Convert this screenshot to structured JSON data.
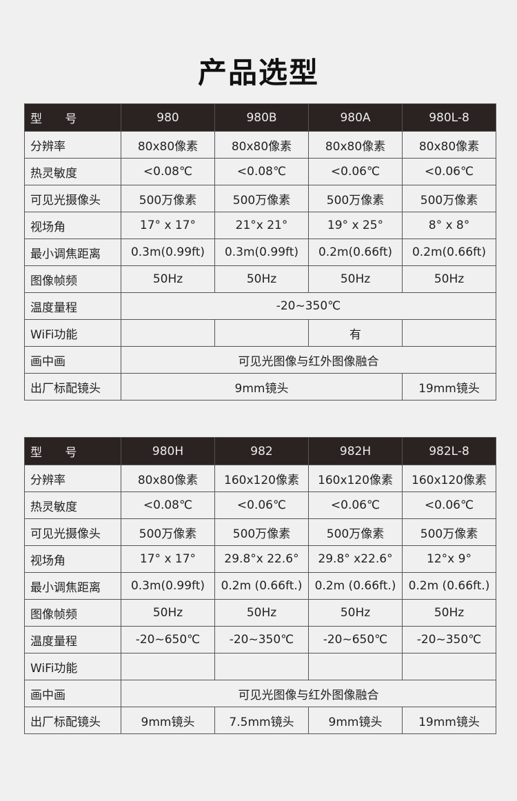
{
  "title": "产品选型",
  "tables": [
    {
      "header": [
        "型 号",
        "980",
        "980B",
        "980A",
        "980L-8"
      ],
      "rows": [
        {
          "label": "分辨率",
          "cells": [
            {
              "text": "80x80像素"
            },
            {
              "text": "80x80像素"
            },
            {
              "text": "80x80像素"
            },
            {
              "text": "80x80像素"
            }
          ]
        },
        {
          "label": "热灵敏度",
          "cells": [
            {
              "text": "<0.08℃"
            },
            {
              "text": "<0.08℃"
            },
            {
              "text": "<0.06℃"
            },
            {
              "text": "<0.06℃"
            }
          ]
        },
        {
          "label": "可见光摄像头",
          "cells": [
            {
              "text": "500万像素"
            },
            {
              "text": "500万像素"
            },
            {
              "text": "500万像素"
            },
            {
              "text": "500万像素"
            }
          ]
        },
        {
          "label": "视场角",
          "cells": [
            {
              "text": "17° x 17°"
            },
            {
              "text": "21°x 21°"
            },
            {
              "text": "19° x 25°"
            },
            {
              "text": "8° x 8°"
            }
          ]
        },
        {
          "label": "最小调焦距离",
          "cells": [
            {
              "text": "0.3m(0.99ft)"
            },
            {
              "text": "0.3m(0.99ft)"
            },
            {
              "text": "0.2m(0.66ft)"
            },
            {
              "text": "0.2m(0.66ft)"
            }
          ]
        },
        {
          "label": "图像帧频",
          "cells": [
            {
              "text": "50Hz"
            },
            {
              "text": "50Hz"
            },
            {
              "text": "50Hz"
            },
            {
              "text": "50Hz"
            }
          ]
        },
        {
          "label": "温度量程",
          "cells": [
            {
              "text": "-20~350℃",
              "span": 4
            }
          ]
        },
        {
          "label": "WiFi功能",
          "cells": [
            {
              "text": ""
            },
            {
              "text": ""
            },
            {
              "text": "有"
            },
            {
              "text": ""
            }
          ]
        },
        {
          "label": "画中画",
          "cells": [
            {
              "text": "可见光图像与红外图像融合",
              "span": 4
            }
          ]
        },
        {
          "label": "出厂标配镜头",
          "cells": [
            {
              "text": "9mm镜头",
              "span": 3
            },
            {
              "text": "19mm镜头"
            }
          ]
        }
      ]
    },
    {
      "header": [
        "型 号",
        "980H",
        "982",
        "982H",
        "982L-8"
      ],
      "rows": [
        {
          "label": "分辨率",
          "cells": [
            {
              "text": "80x80像素"
            },
            {
              "text": "160x120像素"
            },
            {
              "text": "160x120像素"
            },
            {
              "text": "160x120像素"
            }
          ]
        },
        {
          "label": "热灵敏度",
          "cells": [
            {
              "text": "<0.08℃"
            },
            {
              "text": "<0.06℃"
            },
            {
              "text": "<0.06℃"
            },
            {
              "text": "<0.06℃"
            }
          ]
        },
        {
          "label": "可见光摄像头",
          "cells": [
            {
              "text": "500万像素"
            },
            {
              "text": "500万像素"
            },
            {
              "text": "500万像素"
            },
            {
              "text": "500万像素"
            }
          ]
        },
        {
          "label": "视场角",
          "cells": [
            {
              "text": "17° x 17°"
            },
            {
              "text": "29.8°x 22.6°"
            },
            {
              "text": "29.8° x22.6°"
            },
            {
              "text": "12°x 9°"
            }
          ]
        },
        {
          "label": "最小调焦距离",
          "cells": [
            {
              "text": "0.3m(0.99ft)"
            },
            {
              "text": "0.2m (0.66ft.)"
            },
            {
              "text": "0.2m (0.66ft.)"
            },
            {
              "text": "0.2m (0.66ft.)"
            }
          ]
        },
        {
          "label": "图像帧频",
          "cells": [
            {
              "text": "50Hz"
            },
            {
              "text": "50Hz"
            },
            {
              "text": "50Hz"
            },
            {
              "text": "50Hz"
            }
          ]
        },
        {
          "label": "温度量程",
          "cells": [
            {
              "text": "-20~650℃"
            },
            {
              "text": "-20~350℃"
            },
            {
              "text": "-20~650℃"
            },
            {
              "text": "-20~350℃"
            }
          ]
        },
        {
          "label": "WiFi功能",
          "cells": [
            {
              "text": ""
            },
            {
              "text": ""
            },
            {
              "text": ""
            },
            {
              "text": ""
            }
          ]
        },
        {
          "label": "画中画",
          "cells": [
            {
              "text": "可见光图像与红外图像融合",
              "span": 4
            }
          ]
        },
        {
          "label": "出厂标配镜头",
          "cells": [
            {
              "text": "9mm镜头"
            },
            {
              "text": "7.5mm镜头"
            },
            {
              "text": "9mm镜头"
            },
            {
              "text": "19mm镜头"
            }
          ]
        }
      ]
    }
  ]
}
